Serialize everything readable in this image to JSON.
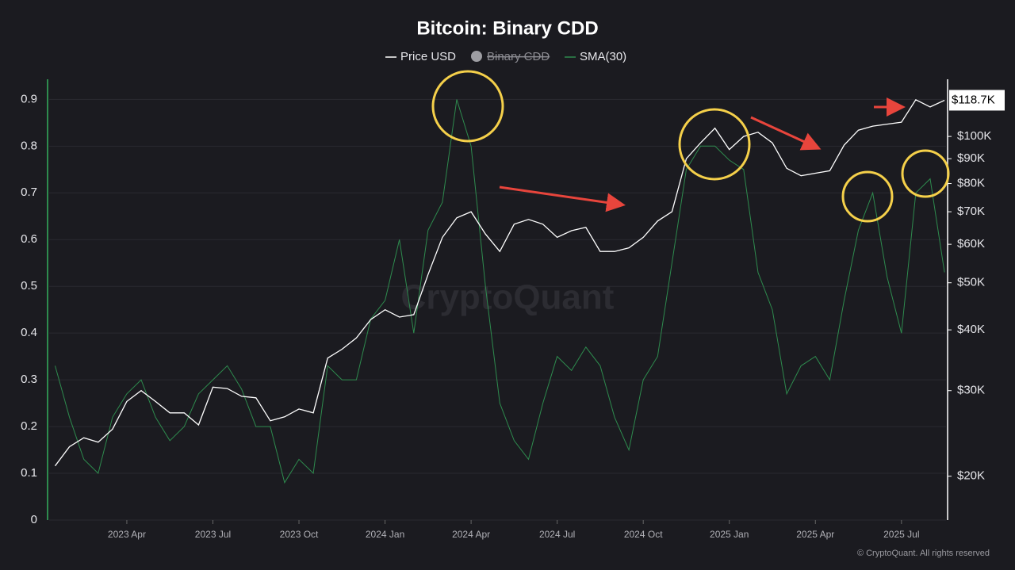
{
  "chart_data": {
    "type": "line",
    "title": "Bitcoin: Binary CDD",
    "watermark": "CryptoQuant",
    "copyright": "© CryptoQuant. All rights reserved",
    "categories": [
      null,
      null,
      null,
      null,
      null,
      "2023 Apr",
      null,
      null,
      null,
      null,
      null,
      "2023 Jul",
      null,
      null,
      null,
      null,
      null,
      "2023 Oct",
      null,
      null,
      null,
      null,
      null,
      "2024 Jan",
      null,
      null,
      null,
      null,
      null,
      "2024 Apr",
      null,
      null,
      null,
      null,
      null,
      "2024 Jul",
      null,
      null,
      null,
      null,
      null,
      "2024 Oct",
      null,
      null,
      null,
      null,
      null,
      "2025 Jan",
      null,
      null,
      null,
      null,
      null,
      "2025 Apr",
      null,
      null,
      null,
      null,
      null,
      "2025 Jul",
      null,
      null,
      null
    ],
    "series": [
      {
        "name": "Price USD",
        "color": "#ffffff",
        "axis": "y2",
        "values": [
          21000,
          23000,
          24000,
          23500,
          25000,
          28500,
          30000,
          28500,
          27000,
          27000,
          25500,
          30500,
          30300,
          29200,
          29000,
          26000,
          26500,
          27500,
          27000,
          35000,
          36500,
          38500,
          42000,
          44000,
          42500,
          43000,
          52000,
          62000,
          68000,
          70000,
          63000,
          58000,
          66000,
          67500,
          66000,
          62000,
          64000,
          65000,
          58000,
          58000,
          59000,
          62000,
          67000,
          70000,
          90000,
          97000,
          104000,
          94000,
          100000,
          102000,
          97000,
          86000,
          83000,
          84000,
          85000,
          96000,
          103000,
          105000,
          106000,
          107000,
          119000,
          115000,
          118700
        ]
      },
      {
        "name": "SMA(30)",
        "color": "#2e8b4e",
        "values": [
          0.33,
          0.22,
          0.13,
          0.1,
          0.22,
          0.27,
          0.3,
          0.22,
          0.17,
          0.2,
          0.27,
          0.3,
          0.33,
          0.28,
          0.2,
          0.2,
          0.08,
          0.13,
          0.1,
          0.33,
          0.3,
          0.3,
          0.43,
          0.47,
          0.6,
          0.4,
          0.62,
          0.68,
          0.9,
          0.8,
          0.5,
          0.25,
          0.17,
          0.13,
          0.25,
          0.35,
          0.32,
          0.37,
          0.33,
          0.22,
          0.15,
          0.3,
          0.35,
          0.55,
          0.75,
          0.8,
          0.8,
          0.77,
          0.75,
          0.53,
          0.45,
          0.27,
          0.33,
          0.35,
          0.3,
          0.47,
          0.62,
          0.7,
          0.52,
          0.4,
          0.7,
          0.73,
          0.53
        ]
      }
    ],
    "hidden_series": [
      {
        "name": "Binary CDD",
        "color": "#9e9ea3"
      }
    ],
    "price_label": {
      "value": 118700,
      "label": "$118.7K"
    },
    "ylim": [
      0,
      0.943
    ],
    "yticks": [
      0,
      0.1,
      0.2,
      0.3,
      0.4,
      0.5,
      0.6,
      0.7,
      0.8,
      0.9
    ],
    "y2lim": [
      16250,
      131100
    ],
    "y2_log": true,
    "y2ticks": [
      {
        "value": 20000,
        "label": "$20K"
      },
      {
        "value": 30000,
        "label": "$30K"
      },
      {
        "value": 40000,
        "label": "$40K"
      },
      {
        "value": 50000,
        "label": "$50K"
      },
      {
        "value": 60000,
        "label": "$60K"
      },
      {
        "value": 70000,
        "label": "$70K"
      },
      {
        "value": 80000,
        "label": "$80K"
      },
      {
        "value": 90000,
        "label": "$90K"
      },
      {
        "value": 100000,
        "label": "$100K"
      }
    ],
    "grid": true
  }
}
